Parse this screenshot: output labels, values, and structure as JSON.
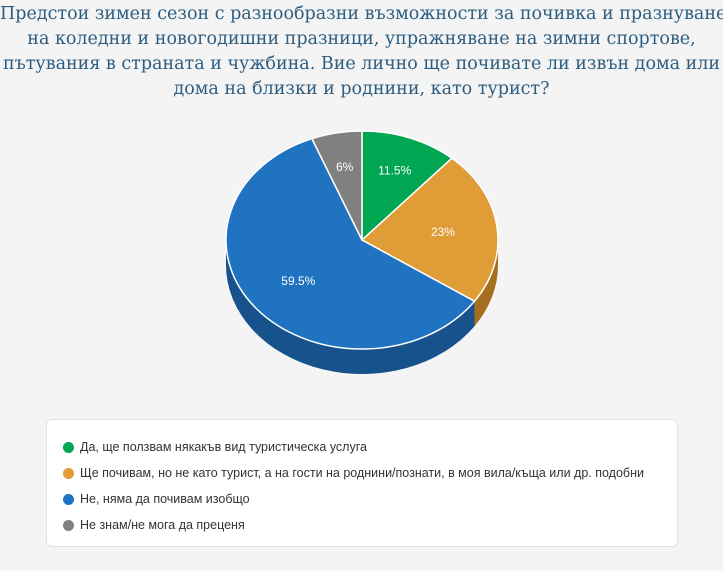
{
  "chart_data": {
    "type": "pie",
    "title_lines": [
      "Предстои зимен сезон с разнообразни възможности за почивка и празнуване",
      "на коледни и новогодишни празници, упражняване на зимни спортове,",
      "пътувания в страната и чужбина. Вие лично ще почивате ли извън дома или",
      "дома на близки и роднини, като турист?"
    ],
    "slices": [
      {
        "name": "Да, ще ползвам някакъв вид туристическа услуга",
        "value": 11.5,
        "label": "11.5%",
        "color": "#00a651",
        "side_color": "#007a3b"
      },
      {
        "name": "Ще почивам, но не като турист, а на гости на роднини/познати, в моя вила/къща или др. подобни",
        "value": 23,
        "label": "23%",
        "color": "#e09c36",
        "side_color": "#a66f1f"
      },
      {
        "name": "Не, няма да почивам изобщо",
        "value": 59.5,
        "label": "59.5%",
        "color": "#1f73c1",
        "side_color": "#17528d"
      },
      {
        "name": "Не знам/не мога да преценя",
        "value": 6,
        "label": "6%",
        "color": "#808080",
        "side_color": "#5c5c5c"
      }
    ],
    "legend_position": "bottom",
    "style": "3d"
  }
}
